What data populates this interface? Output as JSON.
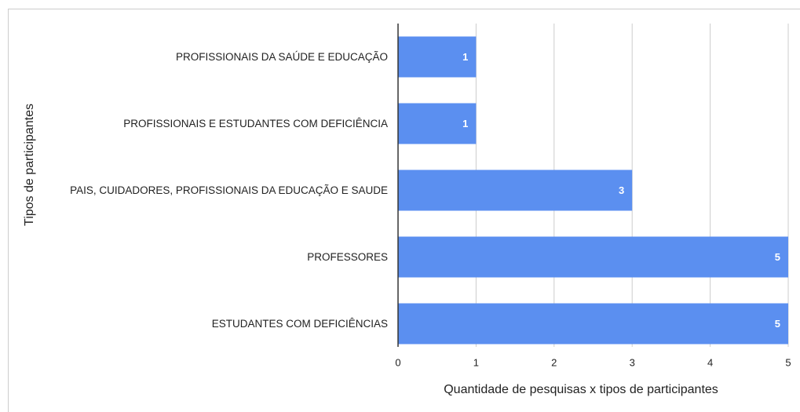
{
  "chart_data": {
    "type": "bar",
    "orientation": "horizontal",
    "categories": [
      "PROFISSIONAIS DA SAÚDE E EDUCAÇÃO",
      "PROFISSIONAIS E ESTUDANTES COM DEFICIÊNCIA",
      "PAIS, CUIDADORES, PROFISSIONAIS DA EDUCAÇÃO E SAUDE",
      "PROFESSORES",
      "ESTUDANTES COM DEFICIÊNCIAS"
    ],
    "values": [
      1,
      1,
      3,
      5,
      5
    ],
    "color": "#5b8ff0",
    "x_label": "Quantidade de pesquisas x tipos de participantes",
    "y_label": "Tipos de participantes",
    "xlim": [
      0,
      5
    ],
    "xticks": [
      0,
      1,
      2,
      3,
      4,
      5
    ],
    "grid": true
  }
}
